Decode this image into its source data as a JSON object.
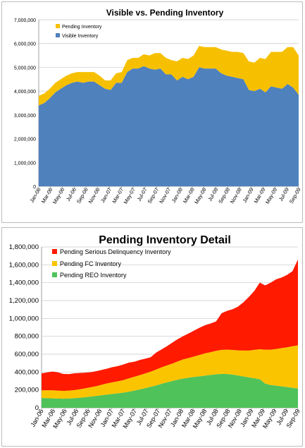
{
  "chart_data": [
    {
      "type": "area",
      "title": "Visible vs. Pending Inventory",
      "stacked": true,
      "ylim": [
        0,
        7000000
      ],
      "yticks": [
        0,
        1000000,
        2000000,
        3000000,
        4000000,
        5000000,
        6000000,
        7000000
      ],
      "ytick_labels": [
        "0",
        "1,000,000",
        "2,000,000",
        "3,000,000",
        "4,000,000",
        "5,000,000",
        "6,000,000",
        "7,000,000"
      ],
      "x_tick_labels": [
        "Jan-06",
        "Mar-06",
        "May-06",
        "Jul-06",
        "Sep-06",
        "Nov-06",
        "Jan-07",
        "Mar-07",
        "May-07",
        "Jul-07",
        "Sep-07",
        "Nov-07",
        "Jan-08",
        "Mar-08",
        "May-08",
        "Jul-08",
        "Sep-08",
        "Nov-08",
        "Jan-09",
        "Mar-09",
        "May-09",
        "Jul-09",
        "Sep-09"
      ],
      "grid": "horizontal",
      "legend_position": "top-left",
      "series": [
        {
          "name": "Visible Inventory",
          "color": "#4f81bd",
          "values": [
            3400000,
            3500000,
            3700000,
            3950000,
            4100000,
            4250000,
            4350000,
            4400000,
            4350000,
            4400000,
            4400000,
            4250000,
            4100000,
            4050000,
            4350000,
            4350000,
            4800000,
            4950000,
            4950000,
            5050000,
            4950000,
            4900000,
            4950000,
            4700000,
            4700000,
            4450000,
            4600000,
            4500000,
            4600000,
            5000000,
            4950000,
            4950000,
            4950000,
            4750000,
            4650000,
            4600000,
            4550000,
            4500000,
            4050000,
            4000000,
            4100000,
            3950000,
            4200000,
            4150000,
            4100000,
            4300000,
            4150000,
            3850000
          ]
        },
        {
          "name": "Pending Inventory",
          "color": "#f6c000",
          "values": [
            400000,
            400000,
            400000,
            400000,
            400000,
            400000,
            400000,
            400000,
            450000,
            400000,
            400000,
            400000,
            350000,
            400000,
            400000,
            450000,
            500000,
            450000,
            450000,
            500000,
            550000,
            700000,
            650000,
            700000,
            600000,
            800000,
            800000,
            850000,
            900000,
            900000,
            900000,
            900000,
            900000,
            1000000,
            1050000,
            1050000,
            1100000,
            1100000,
            1200000,
            1200000,
            1300000,
            1400000,
            1450000,
            1500000,
            1550000,
            1550000,
            1700000,
            1650000
          ]
        }
      ]
    },
    {
      "type": "area",
      "title": "Pending Inventory Detail",
      "stacked": true,
      "ylim": [
        0,
        1800000
      ],
      "yticks": [
        0,
        200000,
        400000,
        600000,
        800000,
        1000000,
        1200000,
        1400000,
        1600000,
        1800000
      ],
      "ytick_labels": [
        "0",
        "200,000",
        "400,000",
        "600,000",
        "800,000",
        "1,000,000",
        "1,200,000",
        "1,400,000",
        "1,600,000",
        "1,800,000"
      ],
      "x_tick_labels": [
        "Jan-06",
        "Mar-06",
        "May-06",
        "Jul-06",
        "Sep-06",
        "Nov-06",
        "Jan-07",
        "Mar-07",
        "May-07",
        "Jul-07",
        "Sep-07",
        "Nov-07",
        "Jan-08",
        "Mar-08",
        "May-08",
        "Jul-08",
        "Sep-08",
        "Nov-08",
        "Jan-09",
        "Mar-09",
        "May-09",
        "Jul-09",
        "Sep-09"
      ],
      "grid": "horizontal",
      "legend_position": "top-left",
      "series": [
        {
          "name": "Pending REO Inventory",
          "color": "#4fc25a",
          "values": [
            110000,
            108000,
            106000,
            104000,
            102000,
            104000,
            108000,
            112000,
            118000,
            125000,
            132000,
            140000,
            148000,
            155000,
            162000,
            170000,
            180000,
            192000,
            205000,
            220000,
            235000,
            250000,
            268000,
            285000,
            300000,
            315000,
            328000,
            338000,
            345000,
            352000,
            360000,
            368000,
            375000,
            380000,
            378000,
            372000,
            362000,
            350000,
            340000,
            330000,
            320000,
            270000,
            255000,
            248000,
            240000,
            232000,
            224000,
            215000
          ]
        },
        {
          "name": "Pending FC Inventory",
          "color": "#fbc400",
          "values": [
            85000,
            88000,
            90000,
            88000,
            87000,
            88000,
            90000,
            95000,
            100000,
            105000,
            110000,
            118000,
            125000,
            130000,
            135000,
            140000,
            150000,
            155000,
            160000,
            165000,
            170000,
            178000,
            185000,
            190000,
            195000,
            205000,
            215000,
            220000,
            230000,
            240000,
            250000,
            255000,
            262000,
            268000,
            272000,
            275000,
            280000,
            290000,
            300000,
            318000,
            335000,
            380000,
            395000,
            410000,
            428000,
            445000,
            465000,
            485000
          ]
        },
        {
          "name": "Pending Serious Delinquency Inventory",
          "color": "#ff1a00",
          "values": [
            190000,
            200000,
            210000,
            205000,
            190000,
            185000,
            188000,
            183000,
            175000,
            168000,
            168000,
            165000,
            165000,
            170000,
            170000,
            175000,
            175000,
            168000,
            170000,
            165000,
            160000,
            190000,
            200000,
            215000,
            235000,
            250000,
            260000,
            275000,
            290000,
            305000,
            315000,
            320000,
            330000,
            410000,
            435000,
            455000,
            490000,
            540000,
            600000,
            660000,
            745000,
            720000,
            750000,
            780000,
            790000,
            810000,
            840000,
            960000
          ]
        }
      ]
    }
  ]
}
